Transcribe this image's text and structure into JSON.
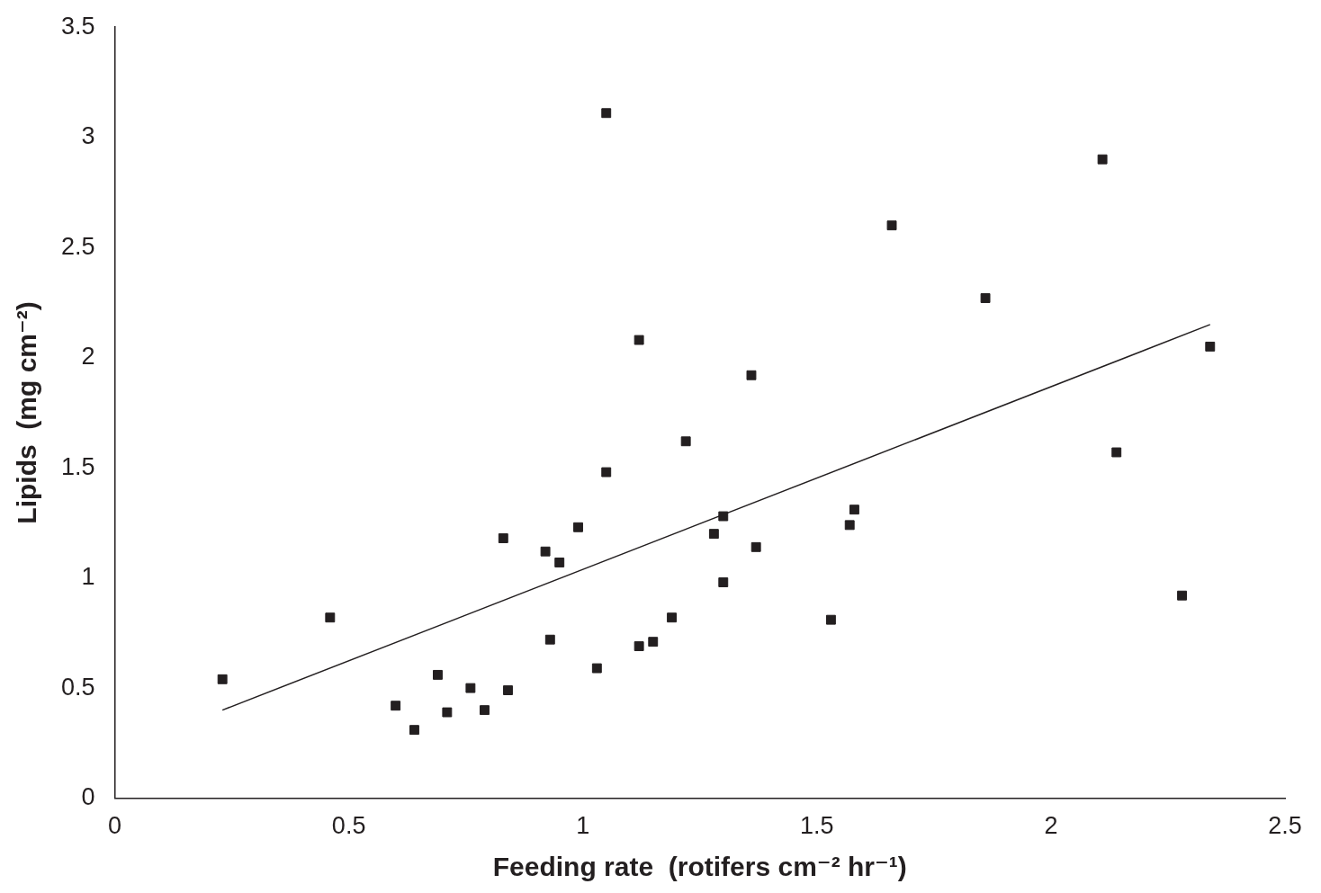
{
  "chart_data": {
    "type": "scatter",
    "xlabel": "Feeding rate  (rotifers cm⁻² hr⁻¹)",
    "ylabel": "Lipids  (mg cm⁻²)",
    "xlim": [
      0,
      2.5
    ],
    "xticks": [
      0,
      0.5,
      1,
      1.5,
      2,
      2.5
    ],
    "ylim": [
      0,
      3.5
    ],
    "yticks": [
      0,
      0.5,
      1,
      1.5,
      2,
      2.5,
      3,
      3.5
    ],
    "grid": false,
    "legend": false,
    "marker": "square",
    "series": [
      {
        "type": "scatter",
        "color": "#231f20",
        "x": [
          0.23,
          0.46,
          0.6,
          0.64,
          0.69,
          0.71,
          0.76,
          0.79,
          0.83,
          0.84,
          0.92,
          0.93,
          0.95,
          0.99,
          1.03,
          1.05,
          1.05,
          1.12,
          1.12,
          1.15,
          1.19,
          1.22,
          1.28,
          1.3,
          1.3,
          1.36,
          1.37,
          1.53,
          1.57,
          1.58,
          1.66,
          1.86,
          2.11,
          2.14,
          2.28,
          2.34
        ],
        "values": [
          0.54,
          0.82,
          0.42,
          0.31,
          0.56,
          0.39,
          0.5,
          0.4,
          1.18,
          0.49,
          1.12,
          0.72,
          1.07,
          1.23,
          0.59,
          3.11,
          1.48,
          2.08,
          0.69,
          0.71,
          0.82,
          1.62,
          1.2,
          1.28,
          0.98,
          1.92,
          1.14,
          0.81,
          1.24,
          1.31,
          2.6,
          2.27,
          2.9,
          1.57,
          0.92,
          2.05
        ]
      },
      {
        "type": "line",
        "color": "#231f20",
        "marker": "none",
        "line_style": "solid",
        "x": [
          0.23,
          2.34
        ],
        "values": [
          0.4,
          2.15
        ]
      }
    ]
  }
}
